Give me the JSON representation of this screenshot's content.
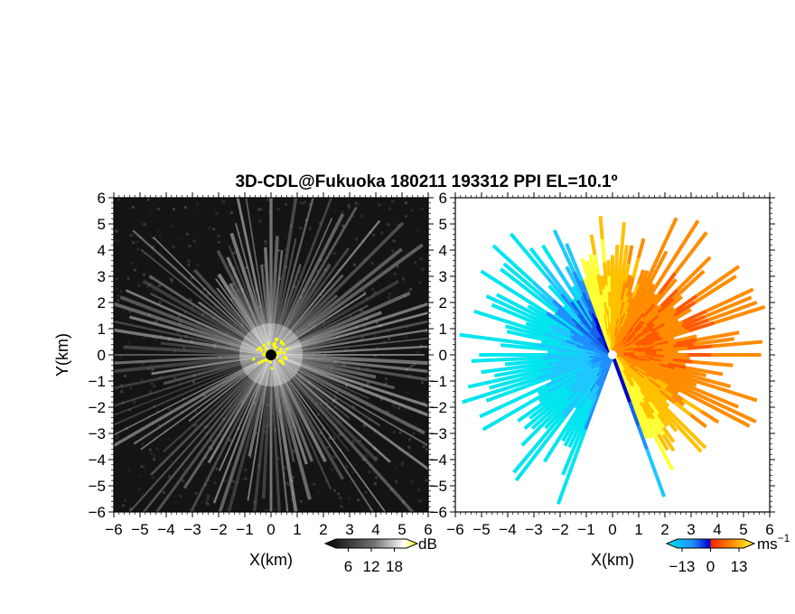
{
  "chart_data": {
    "title": "3D-CDL@Fukuoka 180211 193312 PPI EL=10.1º",
    "panels": [
      {
        "type": "heatmap",
        "name": "reflectivity",
        "xlabel": "X(km)",
        "ylabel": "Y(km)",
        "xlim": [
          -6,
          6
        ],
        "ylim": [
          -6,
          6
        ],
        "xticks": [
          "−6",
          "−5",
          "−4",
          "−3",
          "−2",
          "−1",
          "0",
          "1",
          "2",
          "3",
          "4",
          "5",
          "6"
        ],
        "yticks": [
          "−6",
          "−5",
          "−4",
          "−3",
          "−2",
          "−1",
          "0",
          "1",
          "2",
          "3",
          "4",
          "5",
          "6"
        ],
        "background_color": "#141414",
        "colorbar": {
          "unit": "dB",
          "ticks": [
            "6",
            "12",
            "18"
          ],
          "range": [
            0,
            24
          ],
          "colors": [
            "#000000",
            "#ffffff",
            "#ffff00"
          ]
        }
      },
      {
        "type": "heatmap",
        "name": "doppler-velocity",
        "xlabel": "X(km)",
        "xlim": [
          -6,
          6
        ],
        "ylim": [
          -6,
          6
        ],
        "xticks": [
          "−6",
          "−5",
          "−4",
          "−3",
          "−2",
          "−1",
          "0",
          "1",
          "2",
          "3",
          "4",
          "5",
          "6"
        ],
        "yticks": [
          "−6",
          "−5",
          "−4",
          "−3",
          "−2",
          "−1",
          "0",
          "1",
          "2",
          "3",
          "4",
          "5",
          "6"
        ],
        "background_color": "#ffffff",
        "colorbar": {
          "unit": "ms",
          "unit_exponent": "−1",
          "ticks": [
            "−13",
            "0",
            "13"
          ],
          "range": [
            -20,
            20
          ],
          "colors": [
            "#00e5ee",
            "#1e90ff",
            "#0000cd",
            "#ff2400",
            "#ff8c00",
            "#ffff33"
          ]
        }
      }
    ]
  }
}
